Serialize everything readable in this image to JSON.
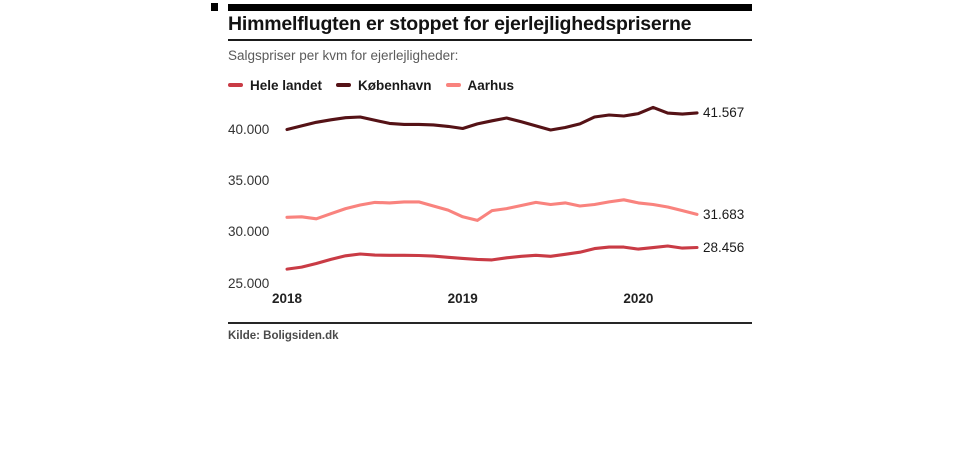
{
  "page": {
    "title": "Himmelflugten er stoppet for ejerlejlighedspriserne",
    "subtitle": "Salgspriser per kvm for ejerlejligheder:",
    "source": "Kilde: Boligsiden.dk"
  },
  "colors": {
    "accent_bar": "#000000",
    "rule": "#1a1a1a"
  },
  "chart_data": {
    "type": "line",
    "title": "Himmelflugten er stoppet for ejerlejlighedspriserne",
    "subtitle": "Salgspriser per kvm for ejerlejligheder:",
    "unit": "kr. per kvm",
    "grid": false,
    "legend_position": "top-left",
    "ylim": [
      25000,
      42500
    ],
    "x": [
      "2018-01",
      "2018-02",
      "2018-03",
      "2018-04",
      "2018-05",
      "2018-06",
      "2018-07",
      "2018-08",
      "2018-09",
      "2018-10",
      "2018-11",
      "2018-12",
      "2019-01",
      "2019-02",
      "2019-03",
      "2019-04",
      "2019-05",
      "2019-06",
      "2019-07",
      "2019-08",
      "2019-09",
      "2019-10",
      "2019-11",
      "2019-12",
      "2020-01",
      "2020-02",
      "2020-03",
      "2020-04",
      "2020-05"
    ],
    "x_ticks": [
      {
        "index": 0,
        "label": "2018"
      },
      {
        "index": 12,
        "label": "2019"
      },
      {
        "index": 24,
        "label": "2020"
      }
    ],
    "y_ticks": [
      {
        "value": 40000,
        "label": "40.000"
      },
      {
        "value": 35000,
        "label": "35.000"
      },
      {
        "value": 30000,
        "label": "30.000"
      },
      {
        "value": 25000,
        "label": "25.000"
      }
    ],
    "series": [
      {
        "name": "Hele landet",
        "color": "#c93b45",
        "end_label": "28.456",
        "values": [
          26350,
          26550,
          26900,
          27300,
          27650,
          27820,
          27720,
          27700,
          27700,
          27680,
          27620,
          27500,
          27400,
          27300,
          27250,
          27450,
          27600,
          27700,
          27600,
          27800,
          28000,
          28350,
          28500,
          28500,
          28300,
          28450,
          28600,
          28400,
          28456
        ]
      },
      {
        "name": "København",
        "color": "#551216",
        "end_label": "41.567",
        "values": [
          39950,
          40300,
          40650,
          40900,
          41100,
          41170,
          40850,
          40550,
          40450,
          40450,
          40400,
          40250,
          40050,
          40500,
          40800,
          41070,
          40700,
          40300,
          39900,
          40150,
          40500,
          41170,
          41360,
          41270,
          41500,
          42100,
          41550,
          41450,
          41567
        ]
      },
      {
        "name": "Aarhus",
        "color": "#f9837e",
        "end_label": "31.683",
        "values": [
          31400,
          31450,
          31250,
          31750,
          32250,
          32600,
          32850,
          32800,
          32900,
          32900,
          32500,
          32100,
          31450,
          31100,
          32050,
          32250,
          32550,
          32850,
          32650,
          32800,
          32500,
          32650,
          32900,
          33100,
          32800,
          32650,
          32400,
          32050,
          31683
        ]
      }
    ]
  }
}
